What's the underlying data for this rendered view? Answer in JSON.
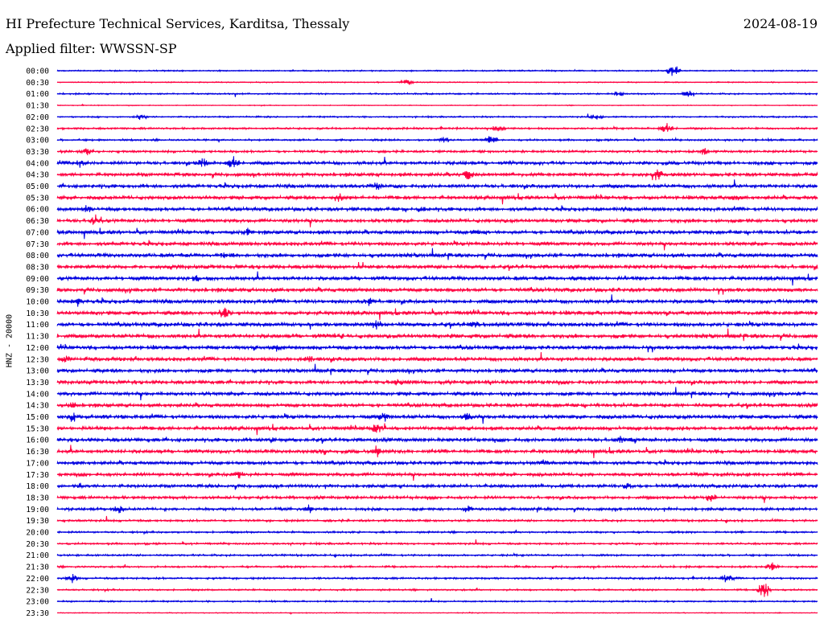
{
  "header": {
    "title": "HI Prefecture Technical Services, Karditsa, Thessaly",
    "date": "2024-08-19",
    "filter": "Applied filter: WWSSN-SP"
  },
  "colors": {
    "even_trace": "#0000e0",
    "odd_trace": "#ff0040",
    "text": "#000000",
    "background": "#ffffff"
  },
  "chart_data": {
    "type": "line",
    "title": "HI Prefecture Technical Services, Karditsa, Thessaly",
    "ylabel": "HNZ - 20000",
    "xlabel": "",
    "rows": [
      {
        "label": "00:00",
        "activity": 0.3,
        "events": [
          {
            "at": 0.81,
            "amp": 10
          }
        ]
      },
      {
        "label": "00:30",
        "activity": 0.25,
        "events": [
          {
            "at": 0.46,
            "amp": 5
          }
        ]
      },
      {
        "label": "01:00",
        "activity": 0.35,
        "events": [
          {
            "at": 0.74,
            "amp": 5
          },
          {
            "at": 0.83,
            "amp": 8
          }
        ]
      },
      {
        "label": "01:30",
        "activity": 0.2,
        "events": []
      },
      {
        "label": "02:00",
        "activity": 0.35,
        "events": [
          {
            "at": 0.11,
            "amp": 6
          },
          {
            "at": 0.71,
            "amp": 5
          }
        ]
      },
      {
        "label": "02:30",
        "activity": 0.45,
        "events": [
          {
            "at": 0.58,
            "amp": 7
          },
          {
            "at": 0.8,
            "amp": 11
          }
        ]
      },
      {
        "label": "03:00",
        "activity": 0.45,
        "events": [
          {
            "at": 0.51,
            "amp": 5
          },
          {
            "at": 0.57,
            "amp": 9
          }
        ]
      },
      {
        "label": "03:30",
        "activity": 0.55,
        "events": [
          {
            "at": 0.04,
            "amp": 6
          },
          {
            "at": 0.85,
            "amp": 6
          }
        ]
      },
      {
        "label": "04:00",
        "activity": 0.8,
        "events": [
          {
            "at": 0.19,
            "amp": 9
          },
          {
            "at": 0.23,
            "amp": 14
          },
          {
            "at": 0.03,
            "amp": 7
          }
        ]
      },
      {
        "label": "04:30",
        "activity": 0.8,
        "events": [
          {
            "at": 0.54,
            "amp": 9
          },
          {
            "at": 0.79,
            "amp": 8
          }
        ]
      },
      {
        "label": "05:00",
        "activity": 0.85,
        "events": [
          {
            "at": 0.42,
            "amp": 7
          }
        ]
      },
      {
        "label": "05:30",
        "activity": 0.85,
        "events": [
          {
            "at": 0.37,
            "amp": 8
          },
          {
            "at": 0.89,
            "amp": 6
          }
        ]
      },
      {
        "label": "06:00",
        "activity": 0.85,
        "events": [
          {
            "at": 0.04,
            "amp": 6
          },
          {
            "at": 0.48,
            "amp": 6
          }
        ]
      },
      {
        "label": "06:30",
        "activity": 0.85,
        "events": [
          {
            "at": 0.05,
            "amp": 8
          }
        ]
      },
      {
        "label": "07:00",
        "activity": 0.85,
        "events": [
          {
            "at": 0.25,
            "amp": 7
          },
          {
            "at": 0.55,
            "amp": 6
          }
        ]
      },
      {
        "label": "07:30",
        "activity": 0.85,
        "events": []
      },
      {
        "label": "08:00",
        "activity": 0.9,
        "events": [
          {
            "at": 0.22,
            "amp": 6
          }
        ]
      },
      {
        "label": "08:30",
        "activity": 0.9,
        "events": []
      },
      {
        "label": "09:00",
        "activity": 0.9,
        "events": [
          {
            "at": 0.18,
            "amp": 7
          }
        ]
      },
      {
        "label": "09:30",
        "activity": 0.9,
        "events": []
      },
      {
        "label": "10:00",
        "activity": 0.9,
        "events": [
          {
            "at": 0.41,
            "amp": 8
          },
          {
            "at": 0.03,
            "amp": 6
          }
        ]
      },
      {
        "label": "10:30",
        "activity": 0.9,
        "events": [
          {
            "at": 0.22,
            "amp": 11
          }
        ]
      },
      {
        "label": "11:00",
        "activity": 0.95,
        "events": [
          {
            "at": 0.42,
            "amp": 7
          },
          {
            "at": 0.55,
            "amp": 8
          }
        ]
      },
      {
        "label": "11:30",
        "activity": 0.95,
        "events": [
          {
            "at": 0.37,
            "amp": 7
          }
        ]
      },
      {
        "label": "12:00",
        "activity": 0.9,
        "events": [
          {
            "at": 0.29,
            "amp": 6
          }
        ]
      },
      {
        "label": "12:30",
        "activity": 0.9,
        "events": [
          {
            "at": 0.33,
            "amp": 8
          },
          {
            "at": 0.01,
            "amp": 6
          }
        ]
      },
      {
        "label": "13:00",
        "activity": 0.85,
        "events": []
      },
      {
        "label": "13:30",
        "activity": 0.85,
        "events": [
          {
            "at": 0.45,
            "amp": 6
          }
        ]
      },
      {
        "label": "14:00",
        "activity": 0.85,
        "events": []
      },
      {
        "label": "14:30",
        "activity": 0.85,
        "events": [
          {
            "at": 0.02,
            "amp": 6
          }
        ]
      },
      {
        "label": "15:00",
        "activity": 0.9,
        "events": [
          {
            "at": 0.02,
            "amp": 8
          },
          {
            "at": 0.43,
            "amp": 9
          },
          {
            "at": 0.54,
            "amp": 7
          }
        ]
      },
      {
        "label": "15:30",
        "activity": 0.85,
        "events": [
          {
            "at": 0.42,
            "amp": 7
          }
        ]
      },
      {
        "label": "16:00",
        "activity": 0.85,
        "events": [
          {
            "at": 0.28,
            "amp": 6
          },
          {
            "at": 0.74,
            "amp": 6
          }
        ]
      },
      {
        "label": "16:30",
        "activity": 0.85,
        "events": [
          {
            "at": 0.42,
            "amp": 9
          },
          {
            "at": 0.35,
            "amp": 6
          }
        ]
      },
      {
        "label": "17:00",
        "activity": 0.8,
        "events": [
          {
            "at": 0.64,
            "amp": 6
          }
        ]
      },
      {
        "label": "17:30",
        "activity": 0.8,
        "events": [
          {
            "at": 0.24,
            "amp": 7
          }
        ]
      },
      {
        "label": "18:00",
        "activity": 0.75,
        "events": [
          {
            "at": 0.75,
            "amp": 8
          },
          {
            "at": 0.03,
            "amp": 6
          }
        ]
      },
      {
        "label": "18:30",
        "activity": 0.7,
        "events": [
          {
            "at": 0.86,
            "amp": 7
          }
        ]
      },
      {
        "label": "19:00",
        "activity": 0.65,
        "events": [
          {
            "at": 0.08,
            "amp": 8
          },
          {
            "at": 0.33,
            "amp": 7
          },
          {
            "at": 0.54,
            "amp": 6
          }
        ]
      },
      {
        "label": "19:30",
        "activity": 0.5,
        "events": []
      },
      {
        "label": "20:00",
        "activity": 0.45,
        "events": []
      },
      {
        "label": "20:30",
        "activity": 0.45,
        "events": []
      },
      {
        "label": "21:00",
        "activity": 0.45,
        "events": []
      },
      {
        "label": "21:30",
        "activity": 0.45,
        "events": [
          {
            "at": 0.94,
            "amp": 7
          }
        ]
      },
      {
        "label": "22:00",
        "activity": 0.45,
        "events": [
          {
            "at": 0.02,
            "amp": 6
          },
          {
            "at": 0.88,
            "amp": 6
          }
        ]
      },
      {
        "label": "22:30",
        "activity": 0.4,
        "events": [
          {
            "at": 0.93,
            "amp": 12
          }
        ]
      },
      {
        "label": "23:00",
        "activity": 0.35,
        "events": []
      },
      {
        "label": "23:30",
        "activity": 0.2,
        "events": []
      }
    ]
  }
}
